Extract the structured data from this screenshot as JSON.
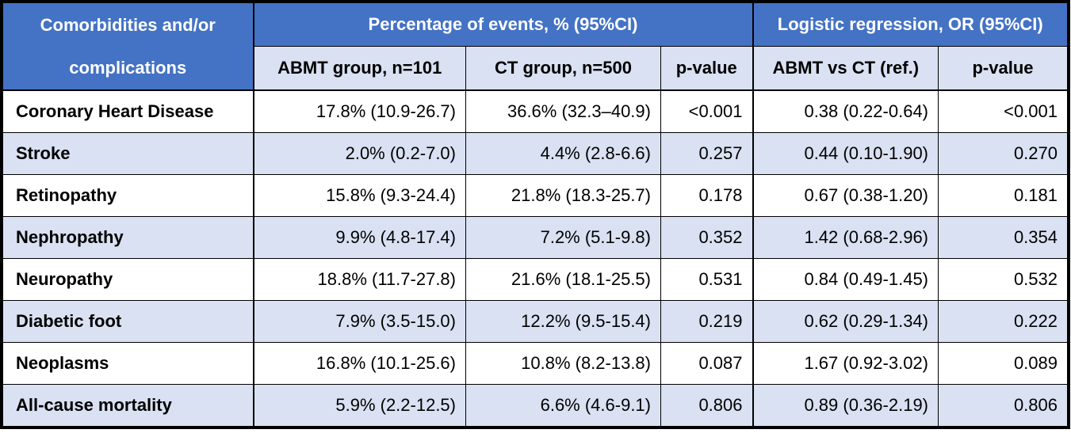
{
  "table": {
    "header": {
      "row_label": "Comorbidities and/or complications",
      "group_events": "Percentage of events, % (95%CI)",
      "group_regression": "Logistic regression, OR (95%CI)",
      "col_abmt": "ABMT group, n=101",
      "col_ct": "CT group, n=500",
      "col_p1": "p-value",
      "col_or": "ABMT vs CT (ref.)",
      "col_p2": "p-value"
    },
    "rows": [
      {
        "label": "Coronary Heart Disease",
        "abmt": "17.8% (10.9-26.7)",
        "ct": "36.6% (32.3–40.9)",
        "p1": "<0.001",
        "or": "0.38 (0.22-0.64)",
        "p2": "<0.001"
      },
      {
        "label": "Stroke",
        "abmt": "2.0% (0.2-7.0)",
        "ct": "4.4% (2.8-6.6)",
        "p1": "0.257",
        "or": "0.44 (0.10-1.90)",
        "p2": "0.270"
      },
      {
        "label": "Retinopathy",
        "abmt": "15.8% (9.3-24.4)",
        "ct": "21.8% (18.3-25.7)",
        "p1": "0.178",
        "or": "0.67 (0.38-1.20)",
        "p2": "0.181"
      },
      {
        "label": "Nephropathy",
        "abmt": "9.9% (4.8-17.4)",
        "ct": "7.2% (5.1-9.8)",
        "p1": "0.352",
        "or": "1.42 (0.68-2.96)",
        "p2": "0.354"
      },
      {
        "label": "Neuropathy",
        "abmt": "18.8% (11.7-27.8)",
        "ct": "21.6% (18.1-25.5)",
        "p1": "0.531",
        "or": "0.84 (0.49-1.45)",
        "p2": "0.532"
      },
      {
        "label": "Diabetic foot",
        "abmt": "7.9% (3.5-15.0)",
        "ct": "12.2% (9.5-15.4)",
        "p1": "0.219",
        "or": "0.62 (0.29-1.34)",
        "p2": "0.222"
      },
      {
        "label": "Neoplasms",
        "abmt": "16.8% (10.1-25.6)",
        "ct": "10.8% (8.2-13.8)",
        "p1": "0.087",
        "or": "1.67 (0.92-3.02)",
        "p2": "0.089"
      },
      {
        "label": "All-cause mortality",
        "abmt": "5.9% (2.2-12.5)",
        "ct": "6.6% (4.6-9.1)",
        "p1": "0.806",
        "or": "0.89 (0.36-2.19)",
        "p2": "0.806"
      }
    ],
    "colors": {
      "header_bg": "#4472c4",
      "header_text": "#ffffff",
      "band_bg": "#d9e1f2",
      "row_bg": "#ffffff"
    }
  }
}
